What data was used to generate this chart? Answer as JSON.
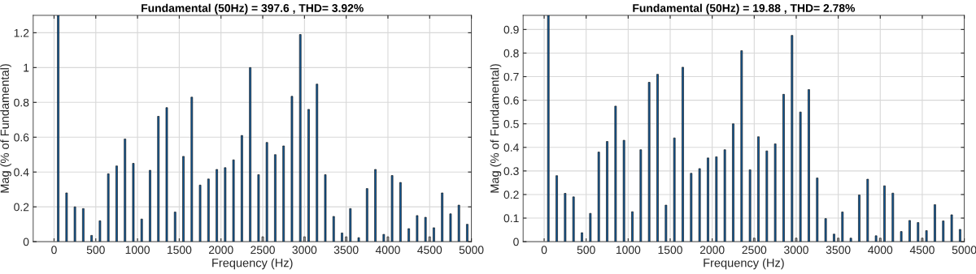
{
  "chart_data": [
    {
      "type": "bar",
      "title": "Fundamental (50Hz) = 397.6 , THD= 3.92%",
      "xlabel": "Frequency (Hz)",
      "ylabel": "Mag (% of Fundamental)",
      "x": [
        50,
        150,
        250,
        350,
        450,
        550,
        650,
        750,
        850,
        950,
        1050,
        1150,
        1250,
        1350,
        1450,
        1550,
        1650,
        1750,
        1850,
        1950,
        2050,
        2150,
        2250,
        2350,
        2450,
        2500,
        2550,
        2650,
        2750,
        2850,
        2950,
        3000,
        3050,
        3150,
        3250,
        3350,
        3450,
        3500,
        3550,
        3650,
        3750,
        3850,
        3950,
        4000,
        4050,
        4150,
        4250,
        4350,
        4450,
        4500,
        4550,
        4650,
        4750,
        4850,
        4950
      ],
      "values": [
        1.3,
        0.28,
        0.2,
        0.19,
        0.036,
        0.12,
        0.39,
        0.435,
        0.59,
        0.45,
        0.13,
        0.41,
        0.72,
        0.77,
        0.17,
        0.49,
        0.83,
        0.325,
        0.36,
        0.415,
        0.425,
        0.47,
        0.61,
        1.0,
        0.385,
        0.028,
        0.57,
        0.5,
        0.55,
        0.835,
        1.19,
        0.028,
        0.76,
        0.905,
        0.385,
        0.145,
        0.05,
        0.028,
        0.19,
        0.023,
        0.305,
        0.415,
        0.042,
        0.028,
        0.38,
        0.34,
        0.075,
        0.15,
        0.14,
        0.028,
        0.08,
        0.28,
        0.16,
        0.21,
        0.1
      ],
      "colors": [
        "#0f5a9c",
        "#0f5a9c",
        "#0f5a9c",
        "#0f5a9c",
        "#0f5a9c",
        "#0f5a9c",
        "#0f5a9c",
        "#0f5a9c",
        "#0f5a9c",
        "#0f5a9c",
        "#0f5a9c",
        "#0f5a9c",
        "#0f5a9c",
        "#0f5a9c",
        "#0f5a9c",
        "#0f5a9c",
        "#0f5a9c",
        "#0f5a9c",
        "#0f5a9c",
        "#0f5a9c",
        "#0f5a9c",
        "#0f5a9c",
        "#0f5a9c",
        "#0f5a9c",
        "#0f5a9c",
        "#a0a0a0",
        "#0f5a9c",
        "#0f5a9c",
        "#0f5a9c",
        "#0f5a9c",
        "#0f5a9c",
        "#a0a0a0",
        "#0f5a9c",
        "#0f5a9c",
        "#0f5a9c",
        "#0f5a9c",
        "#0f5a9c",
        "#a0a0a0",
        "#0f5a9c",
        "#0f5a9c",
        "#0f5a9c",
        "#0f5a9c",
        "#0f5a9c",
        "#a0a0a0",
        "#0f5a9c",
        "#0f5a9c",
        "#0f5a9c",
        "#0f5a9c",
        "#0f5a9c",
        "#a0a0a0",
        "#0f5a9c",
        "#0f5a9c",
        "#0f5a9c",
        "#0f5a9c",
        "#0f5a9c"
      ],
      "xlim": [
        -250,
        5000
      ],
      "xticks": [
        0,
        500,
        1000,
        1500,
        2000,
        2500,
        3000,
        3500,
        4000,
        4500,
        5000
      ],
      "ylim": [
        0,
        1.3
      ],
      "yticks": [
        0,
        0.2,
        0.4,
        0.6,
        {
          "value": 0.8,
          "label": "0.8"
        },
        {
          "value": 1.0,
          "label": "1"
        },
        1.2
      ],
      "grid": true
    },
    {
      "type": "bar",
      "title": "Fundamental (50Hz) = 19.88 , THD= 2.78%",
      "xlabel": "Frequency (Hz)",
      "ylabel": "Mag (% of Fundamental)",
      "x": [
        50,
        150,
        250,
        350,
        450,
        550,
        650,
        750,
        850,
        950,
        1050,
        1150,
        1250,
        1350,
        1450,
        1550,
        1650,
        1750,
        1850,
        1950,
        2050,
        2150,
        2250,
        2350,
        2450,
        2500,
        2550,
        2650,
        2750,
        2850,
        2950,
        3000,
        3050,
        3150,
        3250,
        3350,
        3450,
        3500,
        3550,
        3650,
        3750,
        3850,
        3950,
        4000,
        4050,
        4150,
        4250,
        4350,
        4450,
        4500,
        4550,
        4650,
        4750,
        4850,
        4950
      ],
      "values": [
        0.96,
        0.28,
        0.205,
        0.19,
        0.038,
        0.12,
        0.38,
        0.425,
        0.575,
        0.43,
        0.127,
        0.39,
        0.676,
        0.71,
        0.155,
        0.44,
        0.74,
        0.29,
        0.31,
        0.355,
        0.36,
        0.39,
        0.5,
        0.81,
        0.305,
        0.015,
        0.445,
        0.385,
        0.415,
        0.625,
        0.875,
        0.015,
        0.55,
        0.645,
        0.27,
        0.098,
        0.032,
        0.015,
        0.126,
        0.015,
        0.198,
        0.265,
        0.025,
        0.015,
        0.237,
        0.206,
        0.043,
        0.09,
        0.081,
        0.015,
        0.047,
        0.157,
        0.088,
        0.114,
        0.052
      ],
      "colors": [
        "#0f5a9c",
        "#0f5a9c",
        "#0f5a9c",
        "#0f5a9c",
        "#0f5a9c",
        "#0f5a9c",
        "#0f5a9c",
        "#0f5a9c",
        "#0f5a9c",
        "#0f5a9c",
        "#0f5a9c",
        "#0f5a9c",
        "#0f5a9c",
        "#0f5a9c",
        "#0f5a9c",
        "#0f5a9c",
        "#0f5a9c",
        "#0f5a9c",
        "#0f5a9c",
        "#0f5a9c",
        "#0f5a9c",
        "#0f5a9c",
        "#0f5a9c",
        "#0f5a9c",
        "#0f5a9c",
        "#a0a0a0",
        "#0f5a9c",
        "#0f5a9c",
        "#0f5a9c",
        "#0f5a9c",
        "#0f5a9c",
        "#a0a0a0",
        "#0f5a9c",
        "#0f5a9c",
        "#0f5a9c",
        "#0f5a9c",
        "#0f5a9c",
        "#a0a0a0",
        "#0f5a9c",
        "#0f5a9c",
        "#0f5a9c",
        "#0f5a9c",
        "#0f5a9c",
        "#a0a0a0",
        "#0f5a9c",
        "#0f5a9c",
        "#0f5a9c",
        "#0f5a9c",
        "#0f5a9c",
        "#a0a0a0",
        "#0f5a9c",
        "#0f5a9c",
        "#0f5a9c",
        "#0f5a9c",
        "#0f5a9c"
      ],
      "xlim": [
        -250,
        5000
      ],
      "xticks": [
        0,
        500,
        1000,
        1500,
        2000,
        2500,
        3000,
        3500,
        4000,
        4500,
        5000
      ],
      "ylim": [
        0,
        0.96
      ],
      "yticks": [
        0,
        0.1,
        0.2,
        0.3,
        0.4,
        0.5,
        0.6,
        0.7,
        0.8,
        0.9
      ],
      "grid": true
    }
  ]
}
